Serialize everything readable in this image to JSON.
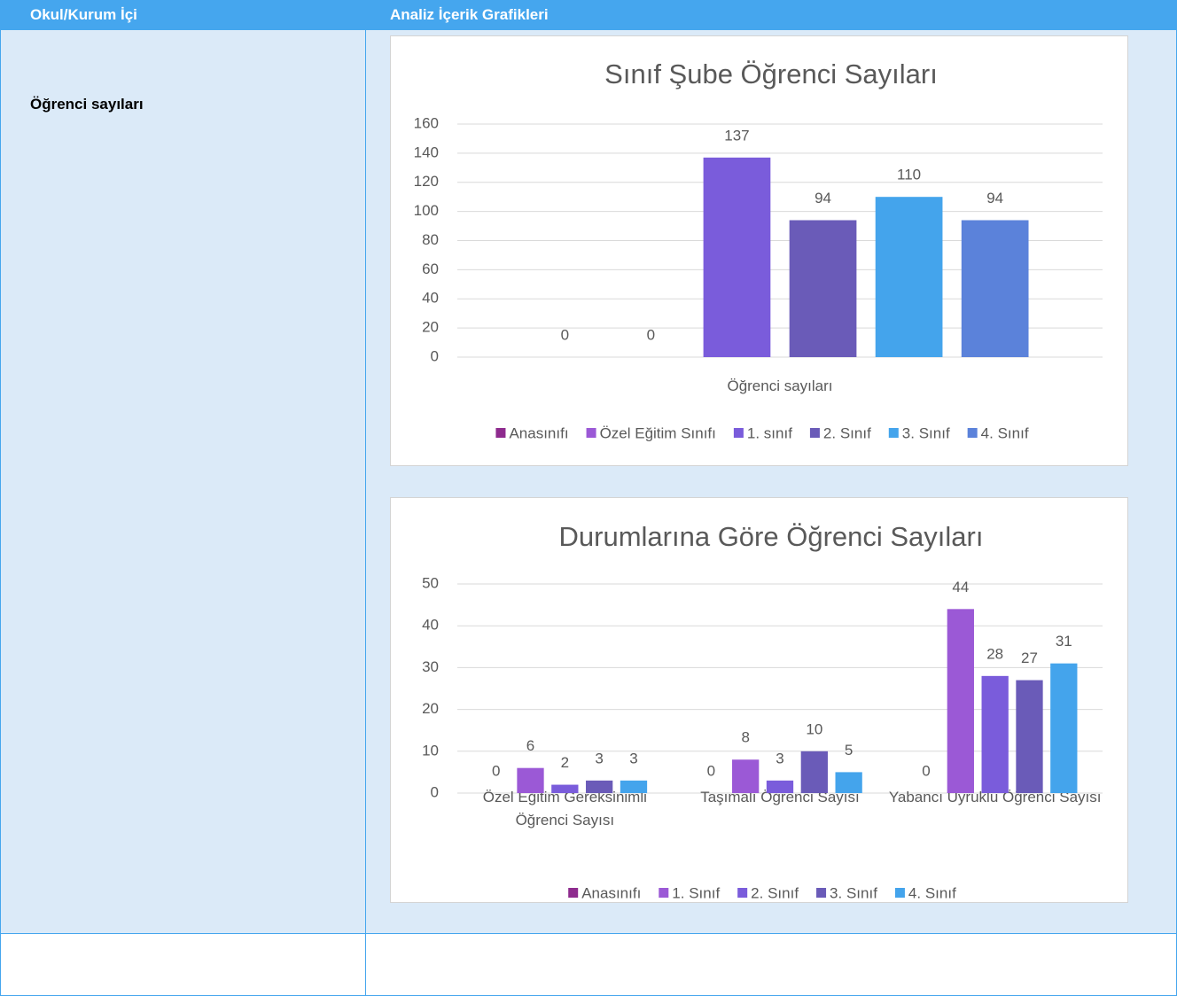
{
  "table": {
    "headers": [
      "Okul/Kurum İçi",
      "Analiz İçerik Grafikleri"
    ],
    "rows": [
      [
        "Öğrenci sayıları"
      ]
    ]
  },
  "chart_data": [
    {
      "type": "bar",
      "title": "Sınıf Şube Öğrenci Sayıları",
      "categories": [
        "Öğrenci sayıları"
      ],
      "series": [
        {
          "name": "Anasınıfı",
          "color": "#8e2b8e",
          "values": [
            0
          ]
        },
        {
          "name": "Özel Eğitim Sınıfı",
          "color": "#9b59d6",
          "values": [
            0
          ]
        },
        {
          "name": "1. sınıf",
          "color": "#7a5cdb",
          "values": [
            137
          ]
        },
        {
          "name": "2. Sınıf",
          "color": "#6a5bb8",
          "values": [
            94
          ]
        },
        {
          "name": "3. Sınıf",
          "color": "#44a4ec",
          "values": [
            110
          ]
        },
        {
          "name": "4. Sınıf",
          "color": "#5b82da",
          "values": [
            94
          ]
        }
      ],
      "ylim": [
        0,
        160
      ],
      "yticks": [
        0,
        20,
        40,
        60,
        80,
        100,
        120,
        140,
        160
      ],
      "grid": true,
      "legend": "bottom"
    },
    {
      "type": "bar",
      "title": "Durumlarına Göre Öğrenci Sayıları",
      "categories": [
        "Özel Eğitim Gereksinimli Öğrenci Sayısı",
        "Taşımalı Öğrenci Sayısı",
        "Yabancı Uyruklu Öğrenci Sayısı"
      ],
      "series": [
        {
          "name": "Anasınıfı",
          "color": "#8e2b8e",
          "values": [
            0,
            0,
            0
          ]
        },
        {
          "name": "1. Sınıf",
          "color": "#9b59d6",
          "values": [
            6,
            8,
            44
          ]
        },
        {
          "name": "2. Sınıf",
          "color": "#7a5cdb",
          "values": [
            2,
            3,
            28
          ]
        },
        {
          "name": "3. Sınıf",
          "color": "#6a5bb8",
          "values": [
            3,
            10,
            27
          ]
        },
        {
          "name": "4. Sınıf",
          "color": "#44a4ec",
          "values": [
            3,
            5,
            31
          ]
        }
      ],
      "ylim": [
        0,
        50
      ],
      "yticks": [
        0,
        10,
        20,
        30,
        40,
        50
      ],
      "grid": true,
      "legend": "bottom"
    }
  ]
}
